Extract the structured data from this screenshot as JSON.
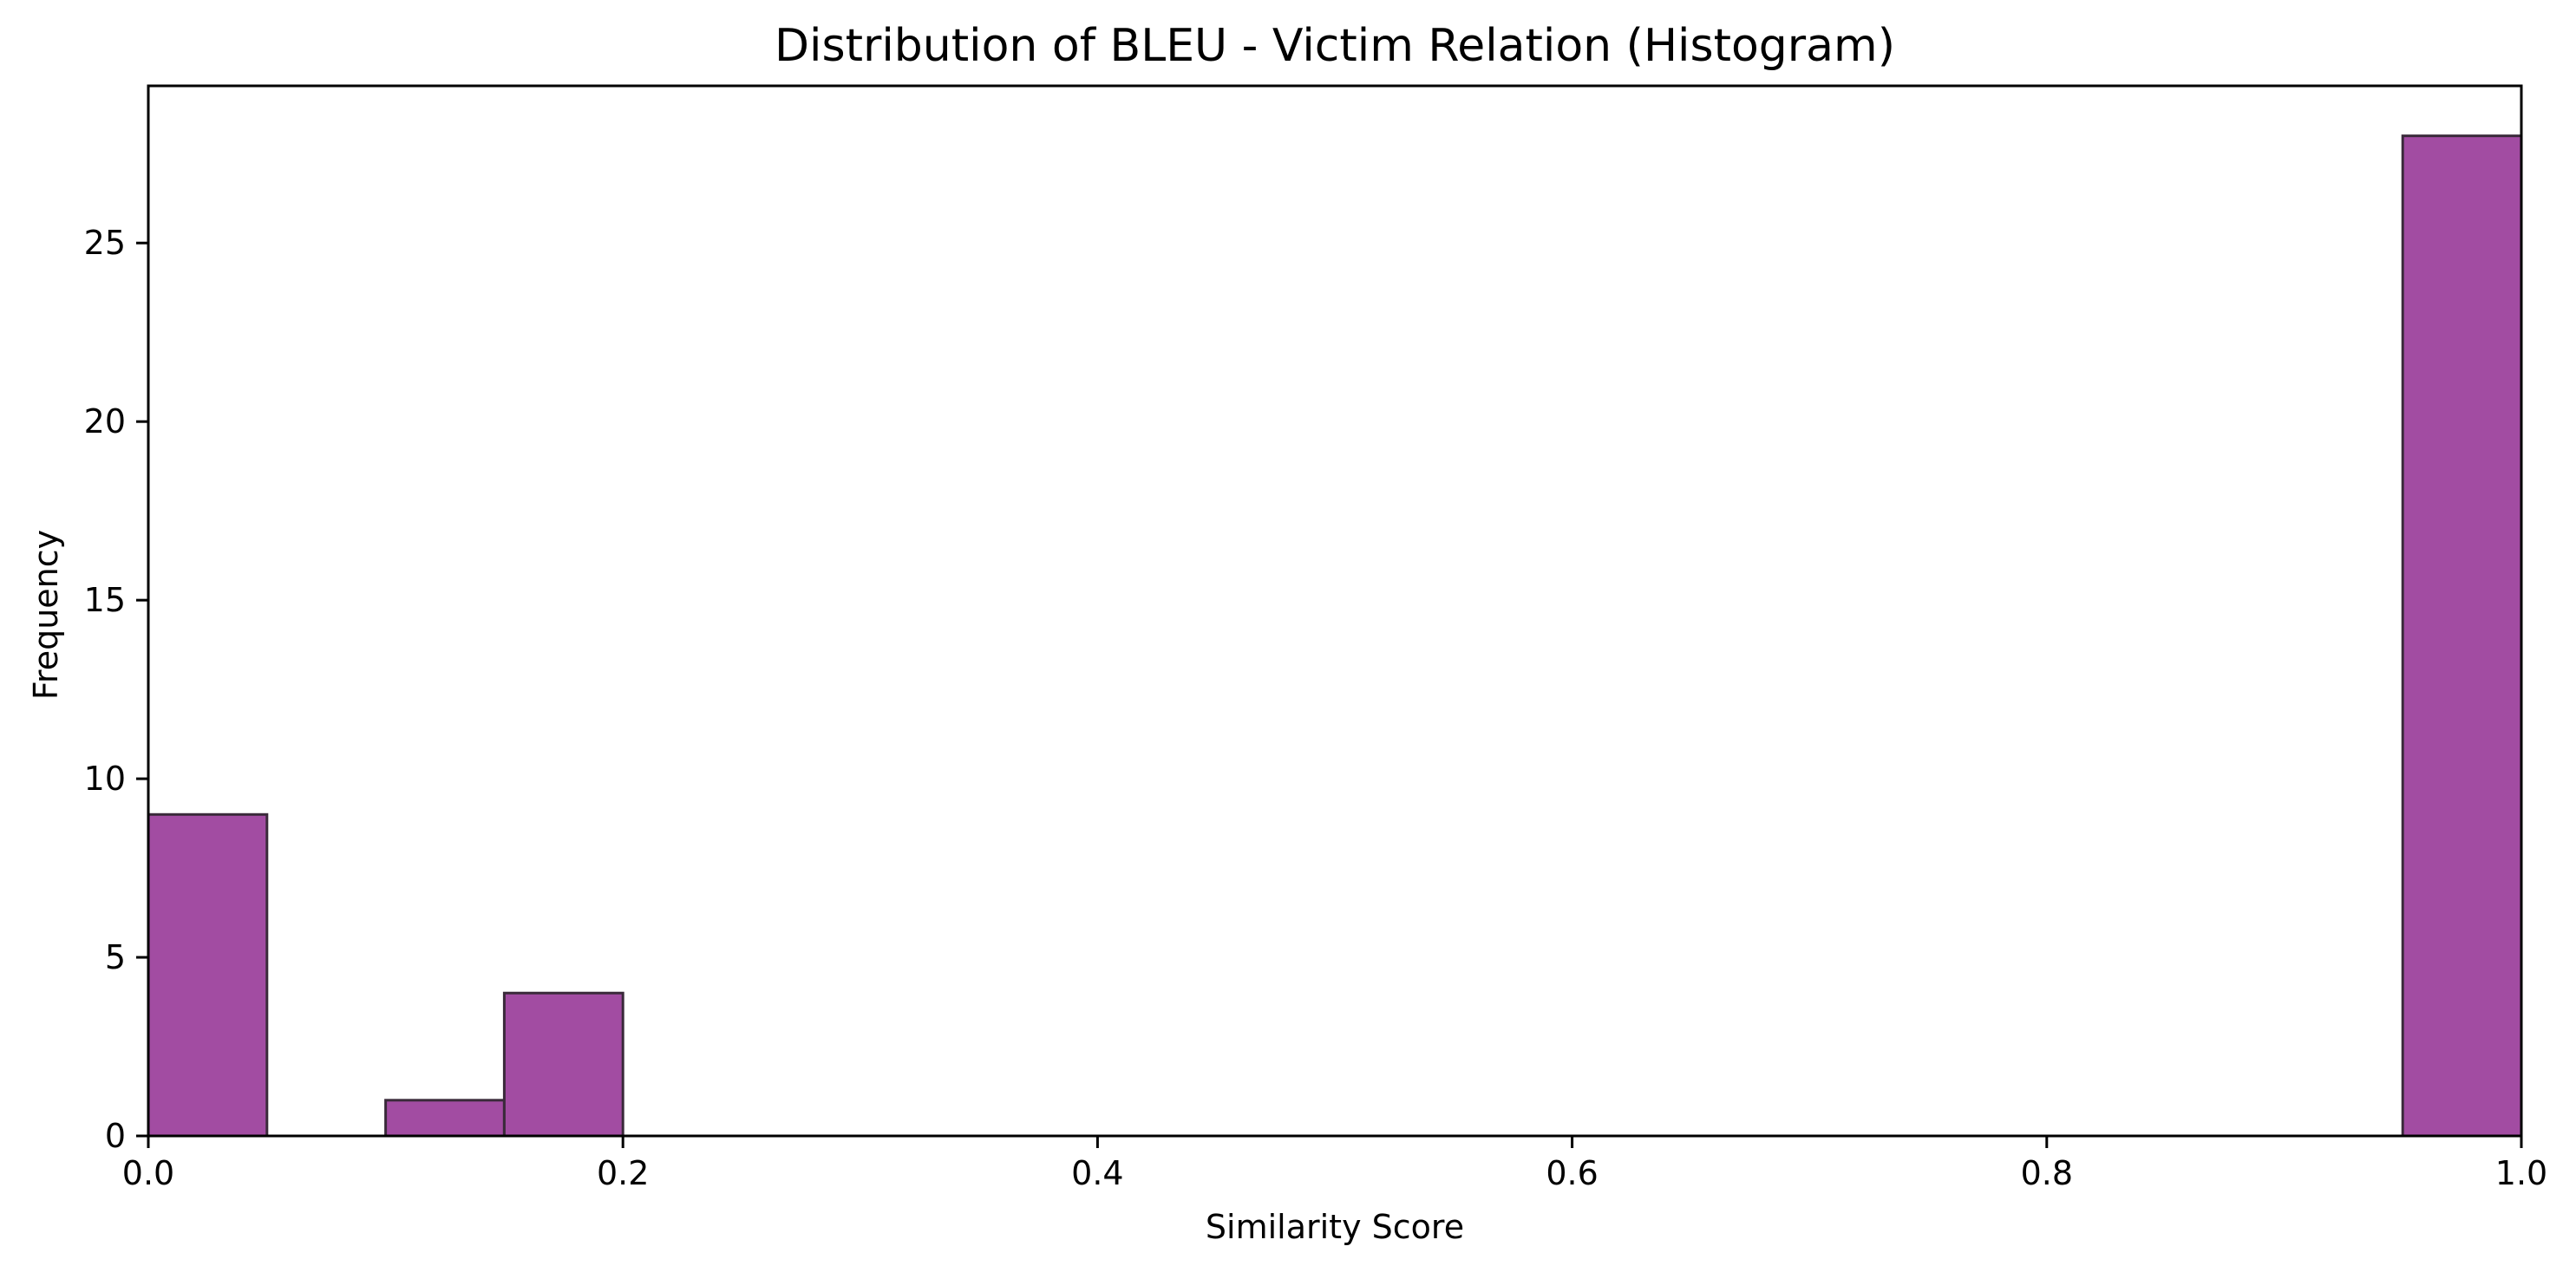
{
  "chart_data": {
    "type": "bar",
    "title": "Distribution of BLEU - Victim Relation (Histogram)",
    "xlabel": "Similarity Score",
    "ylabel": "Frequency",
    "xlim": [
      0.0,
      1.0
    ],
    "ylim": [
      0,
      29.4
    ],
    "bin_width": 0.05,
    "bins": [
      {
        "x0": 0.0,
        "x1": 0.05,
        "count": 9
      },
      {
        "x0": 0.05,
        "x1": 0.1,
        "count": 0
      },
      {
        "x0": 0.1,
        "x1": 0.15,
        "count": 1
      },
      {
        "x0": 0.15,
        "x1": 0.2,
        "count": 4
      },
      {
        "x0": 0.2,
        "x1": 0.25,
        "count": 0
      },
      {
        "x0": 0.25,
        "x1": 0.3,
        "count": 0
      },
      {
        "x0": 0.3,
        "x1": 0.35,
        "count": 0
      },
      {
        "x0": 0.35,
        "x1": 0.4,
        "count": 0
      },
      {
        "x0": 0.4,
        "x1": 0.45,
        "count": 0
      },
      {
        "x0": 0.45,
        "x1": 0.5,
        "count": 0
      },
      {
        "x0": 0.5,
        "x1": 0.55,
        "count": 0
      },
      {
        "x0": 0.55,
        "x1": 0.6,
        "count": 0
      },
      {
        "x0": 0.6,
        "x1": 0.65,
        "count": 0
      },
      {
        "x0": 0.65,
        "x1": 0.7,
        "count": 0
      },
      {
        "x0": 0.7,
        "x1": 0.75,
        "count": 0
      },
      {
        "x0": 0.75,
        "x1": 0.8,
        "count": 0
      },
      {
        "x0": 0.8,
        "x1": 0.85,
        "count": 0
      },
      {
        "x0": 0.85,
        "x1": 0.9,
        "count": 0
      },
      {
        "x0": 0.9,
        "x1": 0.95,
        "count": 0
      },
      {
        "x0": 0.95,
        "x1": 1.0,
        "count": 28
      }
    ],
    "x_ticks": [
      {
        "value": 0.0,
        "label": "0.0"
      },
      {
        "value": 0.2,
        "label": "0.2"
      },
      {
        "value": 0.4,
        "label": "0.4"
      },
      {
        "value": 0.6,
        "label": "0.6"
      },
      {
        "value": 0.8,
        "label": "0.8"
      },
      {
        "value": 1.0,
        "label": "1.0"
      }
    ],
    "y_ticks": [
      {
        "value": 0,
        "label": "0"
      },
      {
        "value": 5,
        "label": "5"
      },
      {
        "value": 10,
        "label": "10"
      },
      {
        "value": 15,
        "label": "15"
      },
      {
        "value": 20,
        "label": "20"
      },
      {
        "value": 25,
        "label": "25"
      }
    ],
    "grid": false,
    "legend": "none",
    "colors": {
      "bar_fill": "#a24ca2",
      "bar_edge": "#3a2a3a",
      "axes": "#000000"
    }
  }
}
